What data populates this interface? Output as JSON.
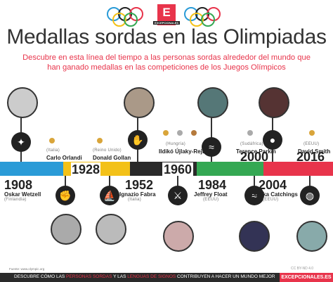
{
  "brand": {
    "letter": "E",
    "name": "EXCEPCIONALES"
  },
  "title": "Medallas sordas en las Olimpiadas",
  "subtitle_line1": "Descubre en esta línea del tiempo a las personas sordas alrededor del mundo que",
  "subtitle_line2": "han ganado medallas en las competiciones de los Juegos Olímpicos",
  "athletes": [
    {
      "year": "1908",
      "name": "Oskar Wetzell",
      "country": "(Finlandia)",
      "icon": "shooting-icon",
      "glyph": "✦"
    },
    {
      "year": "1928",
      "name": "Carlo Orlandi",
      "country": "(Italia)",
      "icon": "boxing-icon",
      "glyph": "✊"
    },
    {
      "year": "1928",
      "name": "Donald Gollan",
      "country": "(Reino Unido)",
      "icon": "rowing-icon",
      "glyph": "⛵"
    },
    {
      "year": "1952",
      "name": "Ignazio Fabra",
      "country": "(Italia)",
      "icon": "wrestling-icon",
      "glyph": "✋"
    },
    {
      "year": "1960",
      "name": "Ildikó Újlaky-Rejtő",
      "country": "(Hungría)",
      "icon": "fencing-icon",
      "glyph": "⚔"
    },
    {
      "year": "1984",
      "name": "Jeffrey Float",
      "country": "(EEUU)",
      "icon": "swimming-icon",
      "glyph": "≈"
    },
    {
      "year": "2000",
      "name": "Terence Parkin",
      "country": "(Sudáfrica)",
      "icon": "swimming-icon-2",
      "glyph": "≈"
    },
    {
      "year": "2004",
      "name": "Tamika Catchings",
      "country": "(EEUU)",
      "icon": "basketball-icon",
      "glyph": "●"
    },
    {
      "year": "2016",
      "name": "David Smith",
      "country": "(EEUU)",
      "icon": "volleyball-icon",
      "glyph": "◍"
    }
  ],
  "footer": {
    "source": "Fuente: www.olympic.org",
    "cc": "CC BY-ND 4.0",
    "text_a": "DESCUBRE CÓMO LAS ",
    "text_b": "PERSONAS SORDAS",
    "text_c": " Y LAS ",
    "text_d": "LENGUAS DE SIGNOS",
    "text_e": " CONTRIBUYEN A HACER UN MUNDO MEJOR",
    "site": "EXCEPCIONALES.ES"
  },
  "colors": {
    "accent": "#e8344b",
    "band": [
      "#2a9bd7",
      "#f3c118",
      "#2a2a2a",
      "#34a853",
      "#e8344b"
    ]
  }
}
